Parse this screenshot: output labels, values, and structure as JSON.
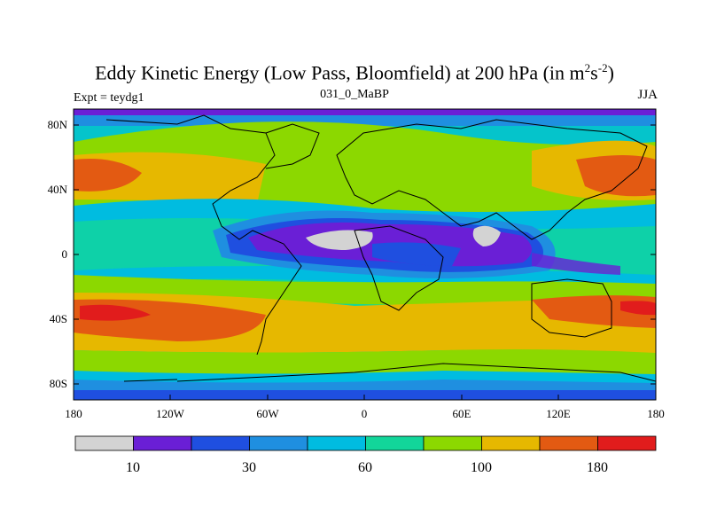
{
  "title": "Eddy Kinetic Energy (Low Pass, Bloomfield) at 200 hPa (in m",
  "title_sup1": "2",
  "title_mid": "s",
  "title_sup2": "-2",
  "title_end": ")",
  "expt_label": "Expt = teydg1",
  "center_label": "031_0_MaBP",
  "season_label": "JJA",
  "lat_labels": [
    "80N",
    "40N",
    "0",
    "40S",
    "80S"
  ],
  "lon_labels": [
    "180",
    "120W",
    "60W",
    "0",
    "60E",
    "120E",
    "180"
  ],
  "colorbar": {
    "colors": [
      "#d3d3d3",
      "#6a1fd6",
      "#1f4fe0",
      "#1f8fe0",
      "#00bce0",
      "#12d69a",
      "#8cd800",
      "#e6b800",
      "#e35a12",
      "#e11c1c"
    ],
    "labels": [
      "10",
      "30",
      "60",
      "100",
      "180"
    ]
  },
  "colors": {
    "background": "#ffffff",
    "map_fill_default": "#12d69a"
  }
}
